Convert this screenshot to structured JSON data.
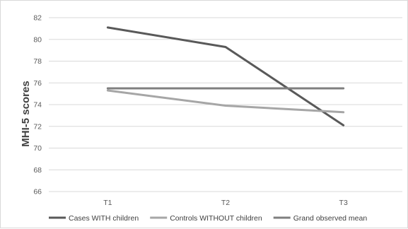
{
  "chart_data": {
    "type": "line",
    "title": "",
    "xlabel": "",
    "ylabel": "MHI-5 scores",
    "categories": [
      "T1",
      "T2",
      "T3"
    ],
    "ylim": [
      66,
      82
    ],
    "ystep": 2,
    "grid": true,
    "legend_position": "bottom",
    "series": [
      {
        "name": "Cases WITH children",
        "values": [
          81.1,
          79.3,
          72.1
        ],
        "color": "#595959"
      },
      {
        "name": "Controls WITHOUT children",
        "values": [
          75.3,
          73.9,
          73.3
        ],
        "color": "#a6a6a6"
      },
      {
        "name": "Grand observed mean",
        "values": [
          75.5,
          75.5,
          75.5
        ],
        "color": "#7f7f7f"
      }
    ]
  }
}
